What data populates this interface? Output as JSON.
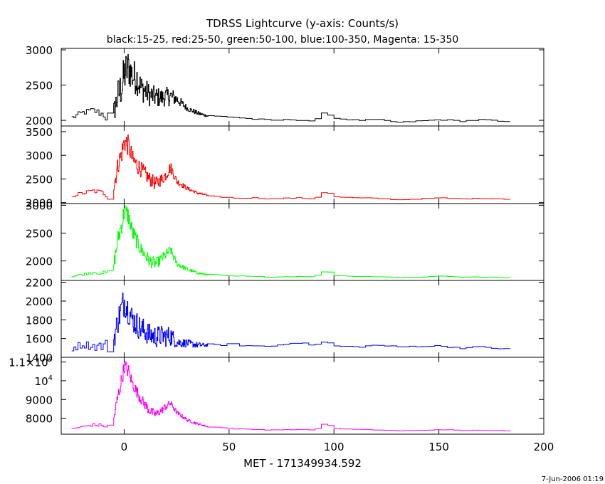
{
  "chart_data": {
    "type": "line",
    "title": "TDRSS Lightcurve (y-axis: Counts/s)",
    "subtitle": "black:15-25, red:25-50, green:50-100, blue:100-350, Magenta: 15-350",
    "xlabel": "MET - 171349934.592",
    "xlim": [
      -30,
      200
    ],
    "xticks": [
      0,
      50,
      100,
      150,
      200
    ],
    "footer": "7-Jun-2006 01:19",
    "panels": [
      {
        "color": "#000000",
        "ylim": [
          1920,
          3020
        ],
        "yticks": [
          {
            "v": 2000,
            "label": "2000"
          },
          {
            "v": 2500,
            "label": "2500"
          },
          {
            "v": 3000,
            "label": "3000"
          }
        ],
        "series": {
          "x": [
            -25,
            -20,
            -15,
            -10,
            -7,
            -5,
            -3,
            -1,
            0,
            2,
            4,
            6,
            8,
            10,
            12,
            15,
            18,
            20,
            22,
            25,
            30,
            35,
            40,
            50,
            60,
            70,
            80,
            90,
            95,
            100,
            110,
            120,
            130,
            140,
            150,
            160,
            170,
            180,
            184
          ],
          "y": [
            2040,
            2110,
            2140,
            2080,
            2010,
            2120,
            2350,
            2500,
            2650,
            2750,
            2620,
            2600,
            2450,
            2420,
            2360,
            2330,
            2320,
            2340,
            2340,
            2300,
            2170,
            2100,
            2060,
            2050,
            2020,
            2000,
            2010,
            1990,
            2120,
            2030,
            2000,
            2010,
            1970,
            1990,
            2010,
            1990,
            2010,
            1980,
            1970
          ],
          "noise": [
            40,
            40,
            50,
            60,
            150,
            160,
            250,
            280,
            300,
            280,
            250,
            240,
            200,
            180,
            160,
            150,
            130,
            130,
            140,
            80,
            40,
            30,
            15,
            10,
            10,
            8,
            8,
            8,
            12,
            8,
            8,
            8,
            8,
            8,
            8,
            8,
            8,
            8,
            8
          ]
        }
      },
      {
        "color": "#ff0000",
        "ylim": [
          1980,
          3620
        ],
        "yticks": [
          {
            "v": 2000,
            "label": "2000"
          },
          {
            "v": 2500,
            "label": "2500"
          },
          {
            "v": 3000,
            "label": "3000"
          },
          {
            "v": 3500,
            "label": "3500"
          }
        ],
        "series": {
          "x": [
            -25,
            -20,
            -15,
            -10,
            -7,
            -5,
            -3,
            -1,
            0,
            2,
            4,
            6,
            8,
            10,
            12,
            15,
            18,
            20,
            22,
            25,
            30,
            35,
            40,
            50,
            60,
            70,
            80,
            90,
            95,
            100,
            110,
            120,
            130,
            140,
            150,
            160,
            170,
            180,
            184
          ],
          "y": [
            2150,
            2200,
            2250,
            2200,
            2150,
            2350,
            2800,
            3100,
            3300,
            3200,
            2900,
            2800,
            2700,
            2600,
            2500,
            2400,
            2500,
            2600,
            2750,
            2450,
            2300,
            2200,
            2150,
            2100,
            2100,
            2080,
            2100,
            2080,
            2250,
            2120,
            2100,
            2090,
            2060,
            2080,
            2100,
            2080,
            2090,
            2080,
            2070
          ],
          "noise": [
            40,
            40,
            50,
            60,
            140,
            160,
            200,
            230,
            240,
            220,
            200,
            190,
            170,
            160,
            150,
            140,
            130,
            130,
            120,
            70,
            40,
            30,
            15,
            10,
            10,
            8,
            8,
            8,
            12,
            8,
            8,
            8,
            8,
            8,
            8,
            8,
            8,
            8,
            8
          ]
        }
      },
      {
        "color": "#00ff00",
        "ylim": [
          1650,
          3030
        ],
        "yticks": [
          {
            "v": 2000,
            "label": "2000"
          },
          {
            "v": 2500,
            "label": "2500"
          },
          {
            "v": 3000,
            "label": "3000"
          }
        ],
        "series": {
          "x": [
            -25,
            -20,
            -15,
            -10,
            -7,
            -5,
            -3,
            -1,
            0,
            2,
            4,
            6,
            8,
            10,
            12,
            15,
            18,
            20,
            22,
            25,
            30,
            35,
            40,
            50,
            60,
            70,
            80,
            90,
            95,
            100,
            110,
            120,
            130,
            140,
            150,
            160,
            170,
            180,
            184
          ],
          "y": [
            1720,
            1760,
            1800,
            1780,
            1760,
            1950,
            2400,
            2700,
            2900,
            2800,
            2500,
            2350,
            2200,
            2100,
            2000,
            1950,
            2050,
            2120,
            2200,
            1950,
            1850,
            1780,
            1750,
            1730,
            1720,
            1710,
            1720,
            1720,
            1830,
            1740,
            1720,
            1720,
            1700,
            1710,
            1730,
            1710,
            1710,
            1700,
            1690
          ],
          "noise": [
            20,
            20,
            30,
            40,
            100,
            120,
            160,
            180,
            180,
            170,
            150,
            140,
            130,
            120,
            110,
            100,
            90,
            90,
            80,
            50,
            30,
            20,
            12,
            8,
            8,
            6,
            6,
            6,
            10,
            6,
            6,
            6,
            6,
            6,
            6,
            6,
            6,
            6,
            6
          ]
        }
      },
      {
        "color": "#0000ff",
        "ylim": [
          1400,
          2220
        ],
        "yticks": [
          {
            "v": 1400,
            "label": "1400"
          },
          {
            "v": 1600,
            "label": "1600"
          },
          {
            "v": 1800,
            "label": "1800"
          },
          {
            "v": 2000,
            "label": "2000"
          },
          {
            "v": 2200,
            "label": "2200"
          }
        ],
        "series": {
          "x": [
            -25,
            -20,
            -15,
            -10,
            -7,
            -5,
            -3,
            -1,
            0,
            2,
            4,
            6,
            8,
            10,
            12,
            15,
            18,
            20,
            22,
            25,
            30,
            35,
            40,
            50,
            60,
            70,
            80,
            90,
            95,
            100,
            110,
            120,
            130,
            140,
            150,
            160,
            170,
            180,
            184
          ],
          "y": [
            1500,
            1540,
            1520,
            1520,
            1530,
            1600,
            1800,
            1950,
            2000,
            1900,
            1800,
            1750,
            1700,
            1680,
            1640,
            1620,
            1630,
            1620,
            1630,
            1560,
            1550,
            1530,
            1530,
            1540,
            1520,
            1520,
            1560,
            1530,
            1570,
            1520,
            1510,
            1530,
            1510,
            1520,
            1520,
            1500,
            1510,
            1490,
            1480
          ],
          "noise": [
            40,
            40,
            50,
            60,
            100,
            120,
            150,
            160,
            160,
            150,
            140,
            140,
            130,
            130,
            120,
            120,
            110,
            110,
            110,
            60,
            40,
            30,
            15,
            10,
            10,
            8,
            8,
            8,
            12,
            8,
            8,
            8,
            8,
            8,
            8,
            8,
            8,
            8,
            8
          ]
        }
      },
      {
        "color": "#ff00ff",
        "ylim": [
          7150,
          11250
        ],
        "yticks": [
          {
            "v": 8000,
            "label": "8000"
          },
          {
            "v": 9000,
            "label": "9000"
          },
          {
            "v": 10000,
            "label": "10",
            "sup": "4"
          },
          {
            "v": 11000,
            "label": "1.1×10",
            "sup": "4"
          }
        ],
        "series": {
          "x": [
            -25,
            -20,
            -15,
            -10,
            -7,
            -5,
            -3,
            -1,
            0,
            2,
            4,
            6,
            8,
            10,
            12,
            15,
            18,
            20,
            22,
            25,
            30,
            35,
            40,
            50,
            60,
            70,
            80,
            90,
            95,
            100,
            110,
            120,
            130,
            140,
            150,
            160,
            170,
            180,
            184
          ],
          "y": [
            7450,
            7550,
            7650,
            7600,
            7500,
            8000,
            9200,
            10200,
            10800,
            10500,
            9800,
            9400,
            9000,
            8700,
            8400,
            8200,
            8450,
            8650,
            8800,
            8300,
            7900,
            7700,
            7550,
            7450,
            7400,
            7380,
            7400,
            7380,
            7750,
            7450,
            7400,
            7380,
            7330,
            7350,
            7400,
            7340,
            7360,
            7330,
            7300
          ],
          "noise": [
            50,
            50,
            80,
            100,
            200,
            300,
            400,
            400,
            400,
            380,
            320,
            300,
            280,
            260,
            240,
            220,
            200,
            200,
            180,
            120,
            80,
            60,
            30,
            20,
            20,
            15,
            15,
            15,
            25,
            15,
            15,
            15,
            15,
            15,
            15,
            15,
            15,
            15,
            15
          ]
        }
      }
    ]
  }
}
